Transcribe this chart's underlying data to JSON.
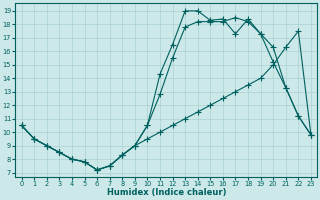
{
  "xlabel": "Humidex (Indice chaleur)",
  "bg_color": "#cce8e8",
  "grid_color": "#aad0d0",
  "line_color": "#006060",
  "xlim_min": -0.5,
  "xlim_max": 23.5,
  "ylim_min": 6.7,
  "ylim_max": 19.6,
  "line1_x": [
    0,
    1,
    2,
    3,
    4,
    5,
    6,
    7,
    8,
    9,
    10,
    11,
    12,
    13,
    14,
    15,
    16,
    17,
    18,
    19,
    20,
    21,
    22,
    23
  ],
  "line1_y": [
    10.5,
    9.5,
    9.0,
    8.5,
    8.0,
    7.8,
    7.2,
    7.5,
    8.3,
    9.0,
    9.5,
    10.0,
    10.5,
    11.0,
    11.5,
    12.0,
    12.5,
    13.0,
    13.5,
    14.0,
    15.0,
    16.3,
    17.5,
    9.8
  ],
  "line2_x": [
    0,
    1,
    2,
    3,
    4,
    5,
    6,
    7,
    8,
    9,
    10,
    11,
    12,
    13,
    14,
    15,
    16,
    17,
    18,
    19,
    20,
    21,
    22,
    23
  ],
  "line2_y": [
    10.5,
    9.5,
    9.0,
    8.5,
    8.0,
    7.8,
    7.2,
    7.5,
    8.3,
    9.0,
    10.5,
    12.8,
    15.5,
    17.8,
    18.2,
    18.2,
    18.2,
    18.5,
    18.2,
    17.3,
    16.3,
    13.3,
    11.2,
    9.8
  ],
  "line3_x": [
    0,
    1,
    2,
    3,
    4,
    5,
    6,
    7,
    8,
    9,
    10,
    11,
    12,
    13,
    14,
    15,
    16,
    17,
    18,
    19,
    20,
    21,
    22,
    23
  ],
  "line3_y": [
    10.5,
    9.5,
    9.0,
    8.5,
    8.0,
    7.8,
    7.2,
    7.5,
    8.3,
    9.0,
    10.5,
    14.3,
    16.5,
    19.0,
    19.0,
    18.3,
    18.4,
    17.3,
    18.4,
    17.3,
    15.2,
    13.3,
    11.2,
    9.8
  ],
  "yticks": [
    7,
    8,
    9,
    10,
    11,
    12,
    13,
    14,
    15,
    16,
    17,
    18,
    19
  ],
  "xticks": [
    0,
    1,
    2,
    3,
    4,
    5,
    6,
    7,
    8,
    9,
    10,
    11,
    12,
    13,
    14,
    15,
    16,
    17,
    18,
    19,
    20,
    21,
    22,
    23
  ]
}
